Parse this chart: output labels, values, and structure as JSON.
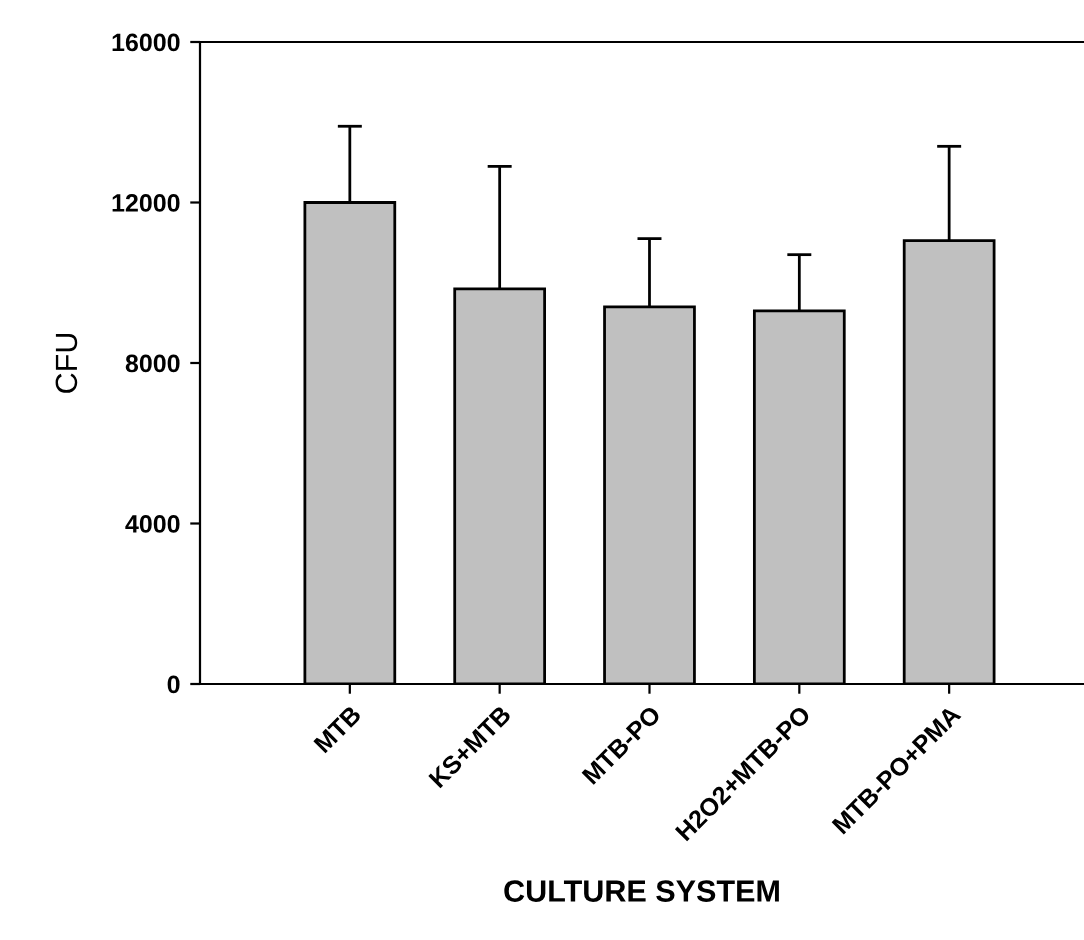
{
  "chart_data": {
    "type": "bar",
    "xlabel": "CULTURE SYSTEM",
    "ylabel": "CFU",
    "categories": [
      "MTB",
      "KS+MTB",
      "MTB-PO",
      "H2O2+MTB-PO",
      "MTB-PO+PMA"
    ],
    "values": [
      12000,
      9850,
      9400,
      9300,
      11050
    ],
    "errors": [
      [
        12000,
        13900
      ],
      [
        9850,
        12900
      ],
      [
        9400,
        11100
      ],
      [
        9300,
        10700
      ],
      [
        11050,
        13400
      ]
    ],
    "color": "#c0c0c0",
    "ylim": [
      0,
      16000
    ],
    "yticks": [
      0,
      4000,
      8000,
      12000,
      16000
    ],
    "grid": false,
    "legend": false
  }
}
